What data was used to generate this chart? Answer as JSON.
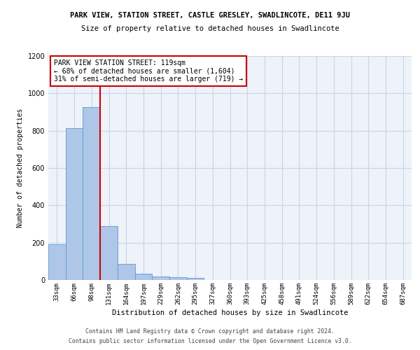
{
  "title_line1": "PARK VIEW, STATION STREET, CASTLE GRESLEY, SWADLINCOTE, DE11 9JU",
  "title_line2": "Size of property relative to detached houses in Swadlincote",
  "xlabel": "Distribution of detached houses by size in Swadlincote",
  "ylabel": "Number of detached properties",
  "bin_labels": [
    "33sqm",
    "66sqm",
    "98sqm",
    "131sqm",
    "164sqm",
    "197sqm",
    "229sqm",
    "262sqm",
    "295sqm",
    "327sqm",
    "360sqm",
    "393sqm",
    "425sqm",
    "458sqm",
    "491sqm",
    "524sqm",
    "556sqm",
    "589sqm",
    "622sqm",
    "654sqm",
    "687sqm"
  ],
  "bar_values": [
    190,
    815,
    925,
    290,
    85,
    35,
    20,
    15,
    10,
    0,
    0,
    0,
    0,
    0,
    0,
    0,
    0,
    0,
    0,
    0,
    0
  ],
  "bar_color": "#aec6e8",
  "bar_edge_color": "#5b9bd5",
  "grid_color": "#c8d4e8",
  "background_color": "#eef2f9",
  "property_bin_index": 3,
  "annotation_text": "PARK VIEW STATION STREET: 119sqm\n← 68% of detached houses are smaller (1,604)\n31% of semi-detached houses are larger (719) →",
  "annotation_box_color": "#ffffff",
  "annotation_box_edge": "#cc0000",
  "vline_color": "#cc0000",
  "ylim": [
    0,
    1200
  ],
  "yticks": [
    0,
    200,
    400,
    600,
    800,
    1000,
    1200
  ],
  "footnote_line1": "Contains HM Land Registry data © Crown copyright and database right 2024.",
  "footnote_line2": "Contains public sector information licensed under the Open Government Licence v3.0."
}
